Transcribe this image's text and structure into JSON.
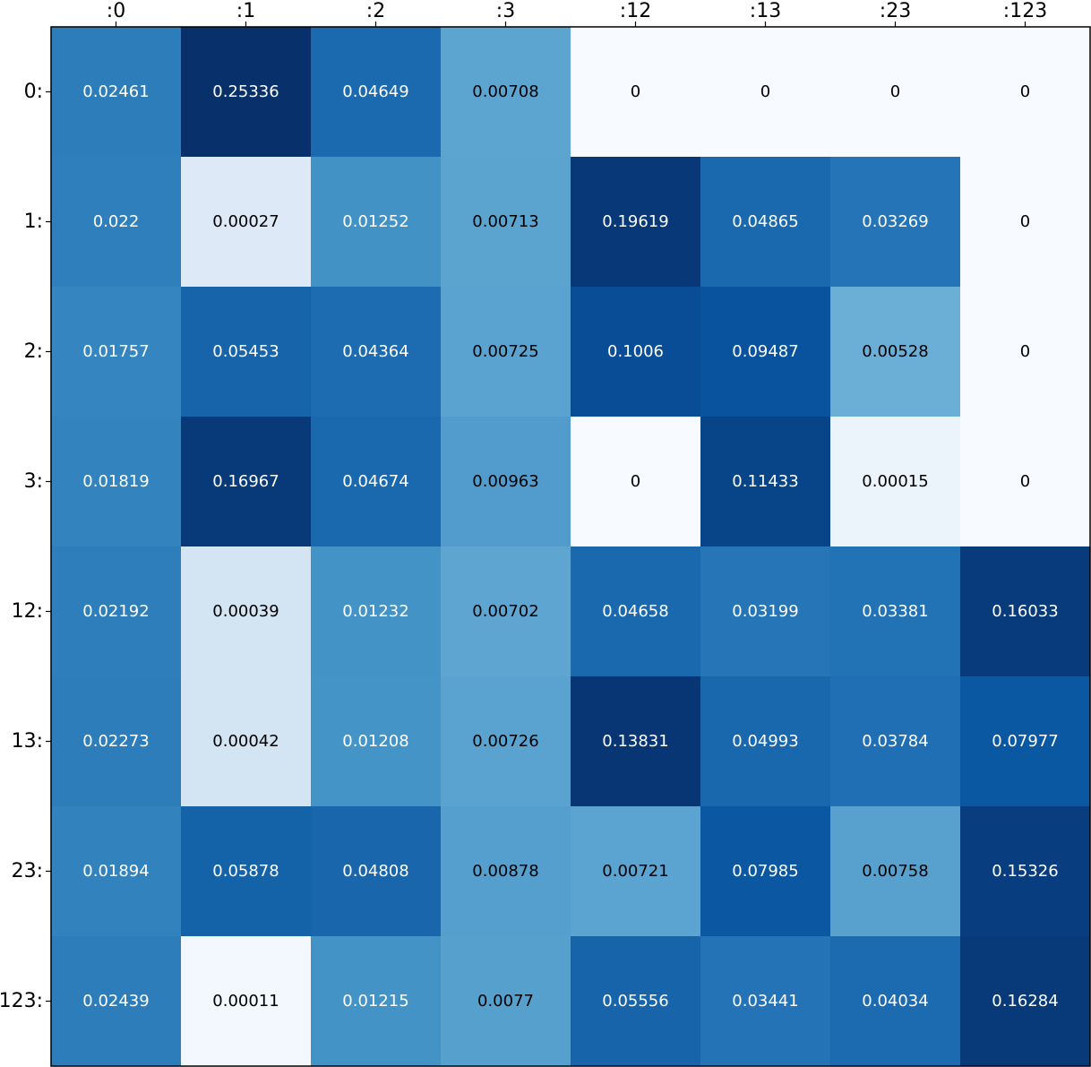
{
  "chart_data": {
    "type": "heatmap",
    "colormap": "Blues",
    "x_labels": [
      ":0",
      ":1",
      ":2",
      ":3",
      ":12",
      ":13",
      ":23",
      ":123"
    ],
    "y_labels": [
      "0:",
      "1:",
      "2:",
      "3:",
      "12:",
      "13:",
      "23:",
      "123:"
    ],
    "cell_labels": [
      [
        "0.02461",
        "0.25336",
        "0.04649",
        "0.00708",
        "0",
        "0",
        "0",
        "0"
      ],
      [
        "0.022",
        "0.00027",
        "0.01252",
        "0.00713",
        "0.19619",
        "0.04865",
        "0.03269",
        "0"
      ],
      [
        "0.01757",
        "0.05453",
        "0.04364",
        "0.00725",
        "0.1006",
        "0.09487",
        "0.00528",
        "0"
      ],
      [
        "0.01819",
        "0.16967",
        "0.04674",
        "0.00963",
        "0",
        "0.11433",
        "0.00015",
        "0"
      ],
      [
        "0.02192",
        "0.00039",
        "0.01232",
        "0.00702",
        "0.04658",
        "0.03199",
        "0.03381",
        "0.16033"
      ],
      [
        "0.02273",
        "0.00042",
        "0.01208",
        "0.00726",
        "0.13831",
        "0.04993",
        "0.03784",
        "0.07977"
      ],
      [
        "0.01894",
        "0.05878",
        "0.04808",
        "0.00878",
        "0.00721",
        "0.07985",
        "0.00758",
        "0.15326"
      ],
      [
        "0.02439",
        "0.00011",
        "0.01215",
        "0.0077",
        "0.05556",
        "0.03441",
        "0.04034",
        "0.16284"
      ]
    ],
    "cell_colors": [
      [
        "#2d7dbb",
        "#08306b",
        "#1b69af",
        "#5da5d1",
        "#f7fbff",
        "#f7fbff",
        "#f7fbff",
        "#f7fbff"
      ],
      [
        "#2f7fbc",
        "#dde9f6",
        "#4292c6",
        "#5ca4d0",
        "#083877",
        "#1a68ae",
        "#2574b7",
        "#f7fbff"
      ],
      [
        "#3585c1",
        "#1764ab",
        "#1d6cb1",
        "#5aa2cf",
        "#084d96",
        "#09529d",
        "#6baed6",
        "#f7fbff"
      ],
      [
        "#3383be",
        "#083979",
        "#1a69ae",
        "#519ccc",
        "#f7fbff",
        "#084488",
        "#ebf3fb",
        "#f7fbff"
      ],
      [
        "#2e7ebc",
        "#d3e4f3",
        "#4393c7",
        "#5ea5d1",
        "#1a69ae",
        "#2575b7",
        "#2272b6",
        "#083b7c"
      ],
      [
        "#2d7dbb",
        "#d3e4f3",
        "#4494c7",
        "#5aa2cf",
        "#083674",
        "#1967ad",
        "#206fb4",
        "#0b58a2"
      ],
      [
        "#3282be",
        "#1462a8",
        "#1966ad",
        "#549fcd",
        "#5ba3d0",
        "#0b57a1",
        "#58a1cf",
        "#083d7f"
      ],
      [
        "#2d7dbb",
        "#f3f8fe",
        "#4393c7",
        "#56a0ce",
        "#1764ab",
        "#2373b6",
        "#1c6ab0",
        "#083a7a"
      ]
    ],
    "dark_text_cells": [
      [
        false,
        false,
        false,
        true,
        true,
        true,
        true,
        true
      ],
      [
        false,
        true,
        false,
        true,
        false,
        false,
        false,
        true
      ],
      [
        false,
        false,
        false,
        true,
        false,
        false,
        true,
        true
      ],
      [
        false,
        false,
        false,
        true,
        true,
        false,
        true,
        true
      ],
      [
        false,
        true,
        false,
        true,
        false,
        false,
        false,
        false
      ],
      [
        false,
        true,
        false,
        true,
        false,
        false,
        false,
        false
      ],
      [
        false,
        false,
        false,
        true,
        true,
        false,
        true,
        false
      ],
      [
        false,
        true,
        false,
        true,
        false,
        false,
        false,
        false
      ]
    ],
    "x_ticks_position": "top",
    "grid": false,
    "legend": "none"
  }
}
